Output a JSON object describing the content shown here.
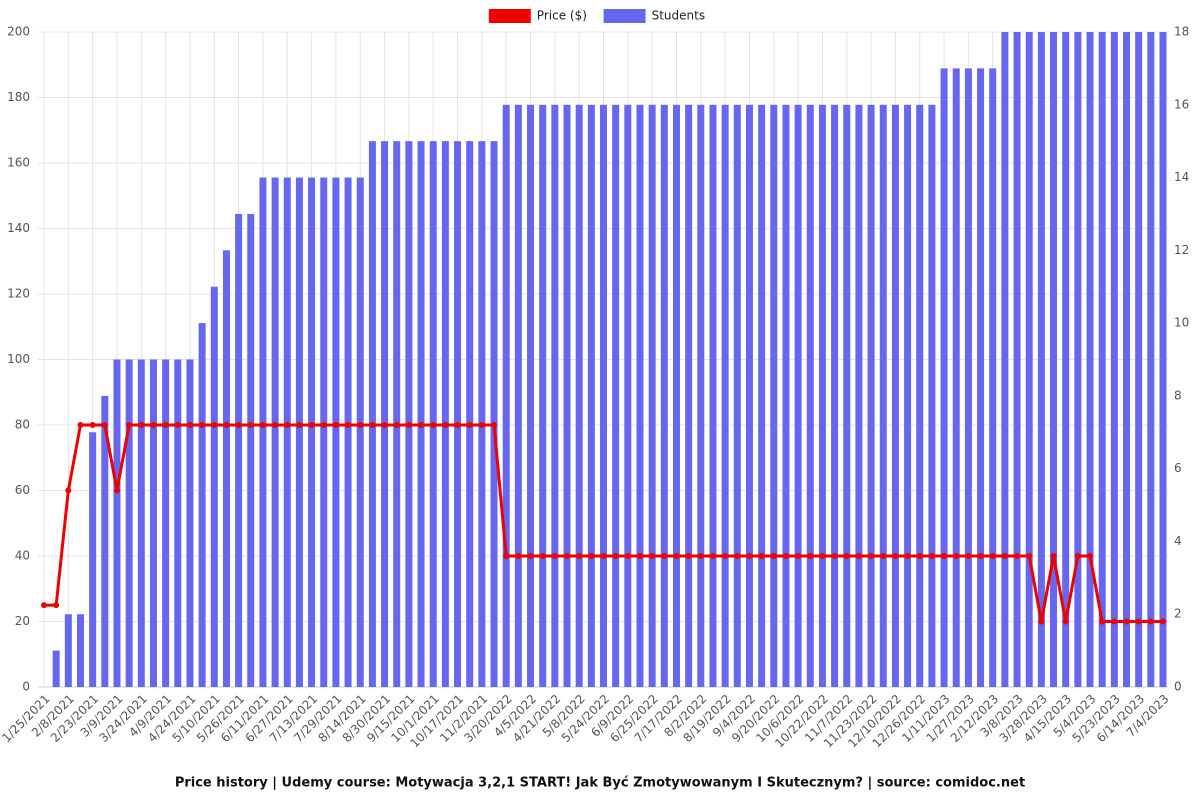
{
  "chart_data": {
    "type": "bar",
    "title": "Price history | Udemy course: Motywacja 3,2,1 START! Jak Być Zmotywowanym I Skutecznym? | source: comidoc.net",
    "categories": [
      "1/25/2021",
      null,
      "2/8/2021",
      null,
      "2/23/2021",
      null,
      "3/9/2021",
      null,
      "3/24/2021",
      null,
      "4/9/2021",
      null,
      "4/24/2021",
      null,
      "5/10/2021",
      null,
      "5/26/2021",
      null,
      "6/11/2021",
      null,
      "6/27/2021",
      null,
      "7/13/2021",
      null,
      "7/29/2021",
      null,
      "8/14/2021",
      null,
      "8/30/2021",
      null,
      "9/15/2021",
      null,
      "10/1/2021",
      null,
      "10/17/2021",
      null,
      "11/2/2021",
      null,
      "3/20/2022",
      null,
      "4/5/2022",
      null,
      "4/21/2022",
      null,
      "5/8/2022",
      null,
      "5/24/2022",
      null,
      "6/9/2022",
      null,
      "6/25/2022",
      null,
      "7/17/2022",
      null,
      "8/2/2022",
      null,
      "8/19/2022",
      null,
      "9/4/2022",
      null,
      "9/20/2022",
      null,
      "10/6/2022",
      null,
      "10/22/2022",
      null,
      "11/7/2022",
      null,
      "11/23/2022",
      null,
      "12/10/2022",
      null,
      "12/26/2022",
      null,
      "1/11/2023",
      null,
      "1/27/2023",
      null,
      "2/12/2023",
      null,
      "3/8/2023",
      null,
      "3/28/2023",
      null,
      "4/15/2023",
      null,
      "5/4/2023",
      null,
      "5/23/2023",
      null,
      "6/14/2023",
      null,
      "7/4/2023"
    ],
    "series": [
      {
        "name": "Price ($)",
        "type": "line",
        "color": "#ee0000",
        "axis": "y",
        "values": [
          25,
          25,
          60,
          80,
          80,
          80,
          60,
          80,
          80,
          80,
          80,
          80,
          80,
          80,
          80,
          80,
          80,
          80,
          80,
          80,
          80,
          80,
          80,
          80,
          80,
          80,
          80,
          80,
          80,
          80,
          80,
          80,
          80,
          80,
          80,
          80,
          80,
          80,
          40,
          40,
          40,
          40,
          40,
          40,
          40,
          40,
          40,
          40,
          40,
          40,
          40,
          40,
          40,
          40,
          40,
          40,
          40,
          40,
          40,
          40,
          40,
          40,
          40,
          40,
          40,
          40,
          40,
          40,
          40,
          40,
          40,
          40,
          40,
          40,
          40,
          40,
          40,
          40,
          40,
          40,
          40,
          40,
          20,
          40,
          20,
          40,
          40,
          20,
          20,
          20,
          20,
          20,
          20
        ]
      },
      {
        "name": "Students",
        "type": "bar",
        "color": "#6666ee",
        "axis": "y2",
        "values": [
          0,
          1,
          2,
          2,
          7,
          8,
          9,
          9,
          9,
          9,
          9,
          9,
          9,
          10,
          11,
          12,
          13,
          13,
          14,
          14,
          14,
          14,
          14,
          14,
          14,
          14,
          14,
          15,
          15,
          15,
          15,
          15,
          15,
          15,
          15,
          15,
          15,
          15,
          16,
          16,
          16,
          16,
          16,
          16,
          16,
          16,
          16,
          16,
          16,
          16,
          16,
          16,
          16,
          16,
          16,
          16,
          16,
          16,
          16,
          16,
          16,
          16,
          16,
          16,
          16,
          16,
          16,
          16,
          16,
          16,
          16,
          16,
          16,
          16,
          17,
          17,
          17,
          17,
          17,
          18,
          18,
          18,
          18,
          18,
          18,
          18,
          18,
          18,
          18,
          18,
          18,
          18,
          18
        ]
      }
    ],
    "ylim": [
      0,
      200
    ],
    "yticks": [
      0,
      20,
      40,
      60,
      80,
      100,
      120,
      140,
      160,
      180,
      200
    ],
    "y2lim": [
      0,
      18
    ],
    "y2ticks": [
      0,
      2,
      4,
      6,
      8,
      10,
      12,
      14,
      16,
      18
    ],
    "grid": true,
    "legend": "top"
  }
}
